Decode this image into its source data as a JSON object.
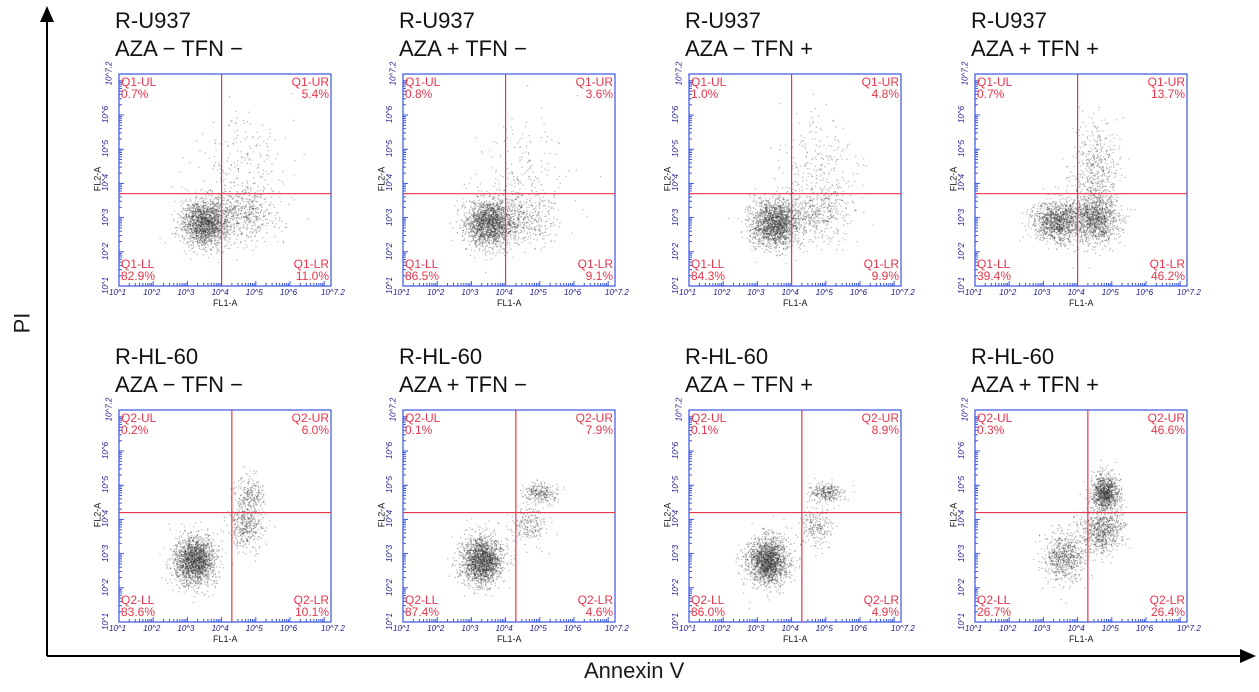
{
  "axes": {
    "ylabel": "PI",
    "xlabel": "Annexin V"
  },
  "colors": {
    "frame": "#3a55e0",
    "gate": "#e8364b",
    "dots": "#2a2a2a",
    "axis": "#000000"
  },
  "chart_data": [
    {
      "type": "scatter",
      "row": 1,
      "col": 1,
      "title": "R-U937",
      "subtitle": "AZA − TFN −",
      "xlabel": "FL1-A",
      "ylabel": "FL2-A",
      "xticks": [
        "10^1",
        "10^2",
        "10^3",
        "10^4",
        "10^5",
        "10^6",
        "10^7.2"
      ],
      "yticks": [
        "10^1",
        "10^2",
        "10^3",
        "10^4",
        "10^5",
        "10^6",
        "10^7.2"
      ],
      "xlim": [
        1,
        7.2
      ],
      "ylim": [
        1,
        7.2
      ],
      "scale": "log10",
      "gate": {
        "x": 4.0,
        "y": 3.7
      },
      "quadrants": {
        "UL": {
          "name": "Q1-UL",
          "value": "0.7%"
        },
        "UR": {
          "name": "Q1-UR",
          "value": "5.4%"
        },
        "LL": {
          "name": "Q1-LL",
          "value": "82.9%"
        },
        "LR": {
          "name": "Q1-LR",
          "value": "11.0%"
        }
      },
      "populations": [
        {
          "cx": 3.5,
          "cy": 2.85,
          "sx": 0.35,
          "sy": 0.35,
          "n": 1800
        },
        {
          "cx": 4.6,
          "cy": 3.1,
          "sx": 0.5,
          "sy": 0.4,
          "n": 500
        },
        {
          "cx": 4.6,
          "cy": 4.4,
          "sx": 0.6,
          "sy": 0.8,
          "n": 250
        }
      ]
    },
    {
      "type": "scatter",
      "row": 1,
      "col": 2,
      "title": "R-U937",
      "subtitle": "AZA + TFN −",
      "xlabel": "FL1-A",
      "ylabel": "FL2-A",
      "xticks": [
        "10^1",
        "10^2",
        "10^3",
        "10^4",
        "10^5",
        "10^6",
        "10^7.2"
      ],
      "yticks": [
        "10^1",
        "10^2",
        "10^3",
        "10^4",
        "10^5",
        "10^6",
        "10^7.2"
      ],
      "xlim": [
        1,
        7.2
      ],
      "ylim": [
        1,
        7.2
      ],
      "scale": "log10",
      "gate": {
        "x": 4.0,
        "y": 3.7
      },
      "quadrants": {
        "UL": {
          "name": "Q1-UL",
          "value": "0.8%"
        },
        "UR": {
          "name": "Q1-UR",
          "value": "3.6%"
        },
        "LL": {
          "name": "Q1-LL",
          "value": "86.5%"
        },
        "LR": {
          "name": "Q1-LR",
          "value": "9.1%"
        }
      },
      "populations": [
        {
          "cx": 3.5,
          "cy": 2.85,
          "sx": 0.35,
          "sy": 0.35,
          "n": 1800
        },
        {
          "cx": 4.5,
          "cy": 3.0,
          "sx": 0.5,
          "sy": 0.4,
          "n": 450
        },
        {
          "cx": 4.5,
          "cy": 4.3,
          "sx": 0.6,
          "sy": 0.8,
          "n": 180
        }
      ]
    },
    {
      "type": "scatter",
      "row": 1,
      "col": 3,
      "title": "R-U937",
      "subtitle": "AZA − TFN +",
      "xlabel": "FL1-A",
      "ylabel": "FL2-A",
      "xticks": [
        "10^1",
        "10^2",
        "10^3",
        "10^4",
        "10^5",
        "10^6",
        "10^7.2"
      ],
      "yticks": [
        "10^1",
        "10^2",
        "10^3",
        "10^4",
        "10^5",
        "10^6",
        "10^7.2"
      ],
      "xlim": [
        1,
        7.2
      ],
      "ylim": [
        1,
        7.2
      ],
      "scale": "log10",
      "gate": {
        "x": 4.0,
        "y": 3.7
      },
      "quadrants": {
        "UL": {
          "name": "Q1-UL",
          "value": "1.0%"
        },
        "UR": {
          "name": "Q1-UR",
          "value": "4.8%"
        },
        "LL": {
          "name": "Q1-LL",
          "value": "84.3%"
        },
        "LR": {
          "name": "Q1-LR",
          "value": "9.9%"
        }
      },
      "populations": [
        {
          "cx": 3.5,
          "cy": 2.85,
          "sx": 0.35,
          "sy": 0.35,
          "n": 1800
        },
        {
          "cx": 4.7,
          "cy": 3.1,
          "sx": 0.5,
          "sy": 0.4,
          "n": 480
        },
        {
          "cx": 4.7,
          "cy": 4.4,
          "sx": 0.6,
          "sy": 0.8,
          "n": 240
        }
      ]
    },
    {
      "type": "scatter",
      "row": 1,
      "col": 4,
      "title": "R-U937",
      "subtitle": "AZA + TFN +",
      "xlabel": "FL1-A",
      "ylabel": "FL2-A",
      "xticks": [
        "10^1",
        "10^2",
        "10^3",
        "10^4",
        "10^5",
        "10^6",
        "10^7.2"
      ],
      "yticks": [
        "10^1",
        "10^2",
        "10^3",
        "10^4",
        "10^5",
        "10^6",
        "10^7.2"
      ],
      "xlim": [
        1,
        7.2
      ],
      "ylim": [
        1,
        7.2
      ],
      "scale": "log10",
      "gate": {
        "x": 4.0,
        "y": 3.7
      },
      "quadrants": {
        "UL": {
          "name": "Q1-UL",
          "value": "0.7%"
        },
        "UR": {
          "name": "Q1-UR",
          "value": "13.7%"
        },
        "LL": {
          "name": "Q1-LL",
          "value": "39.4%"
        },
        "LR": {
          "name": "Q1-LR",
          "value": "46.2%"
        }
      },
      "populations": [
        {
          "cx": 3.4,
          "cy": 2.9,
          "sx": 0.35,
          "sy": 0.3,
          "n": 1200
        },
        {
          "cx": 4.5,
          "cy": 3.0,
          "sx": 0.35,
          "sy": 0.4,
          "n": 1300
        },
        {
          "cx": 4.5,
          "cy": 4.5,
          "sx": 0.35,
          "sy": 0.6,
          "n": 450
        }
      ]
    },
    {
      "type": "scatter",
      "row": 2,
      "col": 1,
      "title": "R-HL-60",
      "subtitle": "AZA − TFN −",
      "xlabel": "FL1-A",
      "ylabel": "FL2-A",
      "xticks": [
        "10^1",
        "10^2",
        "10^3",
        "10^4",
        "10^5",
        "10^6",
        "10^7.2"
      ],
      "yticks": [
        "10^1",
        "10^2",
        "10^3",
        "10^4",
        "10^5",
        "10^6",
        "10^7.2"
      ],
      "xlim": [
        1,
        7.2
      ],
      "ylim": [
        1,
        7.2
      ],
      "scale": "log10",
      "gate": {
        "x": 4.3,
        "y": 4.2
      },
      "quadrants": {
        "UL": {
          "name": "Q2-UL",
          "value": "0.2%"
        },
        "UR": {
          "name": "Q2-UR",
          "value": "6.0%"
        },
        "LL": {
          "name": "Q2-LL",
          "value": "83.6%"
        },
        "LR": {
          "name": "Q2-LR",
          "value": "10.1%"
        }
      },
      "populations": [
        {
          "cx": 3.2,
          "cy": 2.8,
          "sx": 0.3,
          "sy": 0.35,
          "n": 1900
        },
        {
          "cx": 4.7,
          "cy": 3.8,
          "sx": 0.25,
          "sy": 0.35,
          "n": 400
        },
        {
          "cx": 4.8,
          "cy": 4.7,
          "sx": 0.2,
          "sy": 0.3,
          "n": 250
        }
      ]
    },
    {
      "type": "scatter",
      "row": 2,
      "col": 2,
      "title": "R-HL-60",
      "subtitle": "AZA + TFN −",
      "xlabel": "FL1-A",
      "ylabel": "FL2-A",
      "xticks": [
        "10^1",
        "10^2",
        "10^3",
        "10^4",
        "10^5",
        "10^6",
        "10^7.2"
      ],
      "yticks": [
        "10^1",
        "10^2",
        "10^3",
        "10^4",
        "10^5",
        "10^6",
        "10^7.2"
      ],
      "xlim": [
        1,
        7.2
      ],
      "ylim": [
        1,
        7.2
      ],
      "scale": "log10",
      "gate": {
        "x": 4.3,
        "y": 4.2
      },
      "quadrants": {
        "UL": {
          "name": "Q2-UL",
          "value": "0.1%"
        },
        "UR": {
          "name": "Q2-UR",
          "value": "7.9%"
        },
        "LL": {
          "name": "Q2-LL",
          "value": "87.4%"
        },
        "LR": {
          "name": "Q2-LR",
          "value": "4.6%"
        }
      },
      "populations": [
        {
          "cx": 3.3,
          "cy": 2.8,
          "sx": 0.3,
          "sy": 0.35,
          "n": 1900
        },
        {
          "cx": 4.7,
          "cy": 3.8,
          "sx": 0.25,
          "sy": 0.3,
          "n": 220
        },
        {
          "cx": 5.0,
          "cy": 4.8,
          "sx": 0.25,
          "sy": 0.15,
          "n": 260
        }
      ]
    },
    {
      "type": "scatter",
      "row": 2,
      "col": 3,
      "title": "R-HL-60",
      "subtitle": "AZA − TFN +",
      "xlabel": "FL1-A",
      "ylabel": "FL2-A",
      "xticks": [
        "10^1",
        "10^2",
        "10^3",
        "10^4",
        "10^5",
        "10^6",
        "10^7.2"
      ],
      "yticks": [
        "10^1",
        "10^2",
        "10^3",
        "10^4",
        "10^5",
        "10^6",
        "10^7.2"
      ],
      "xlim": [
        1,
        7.2
      ],
      "ylim": [
        1,
        7.2
      ],
      "scale": "log10",
      "gate": {
        "x": 4.3,
        "y": 4.2
      },
      "quadrants": {
        "UL": {
          "name": "Q2-UL",
          "value": "0.1%"
        },
        "UR": {
          "name": "Q2-UR",
          "value": "8.9%"
        },
        "LL": {
          "name": "Q2-LL",
          "value": "86.0%"
        },
        "LR": {
          "name": "Q2-LR",
          "value": "4.9%"
        }
      },
      "populations": [
        {
          "cx": 3.3,
          "cy": 2.8,
          "sx": 0.3,
          "sy": 0.35,
          "n": 1900
        },
        {
          "cx": 4.7,
          "cy": 3.8,
          "sx": 0.25,
          "sy": 0.3,
          "n": 230
        },
        {
          "cx": 5.0,
          "cy": 4.8,
          "sx": 0.25,
          "sy": 0.15,
          "n": 290
        }
      ]
    },
    {
      "type": "scatter",
      "row": 2,
      "col": 4,
      "title": "R-HL-60",
      "subtitle": "AZA + TFN +",
      "xlabel": "FL1-A",
      "ylabel": "FL2-A",
      "xticks": [
        "10^1",
        "10^2",
        "10^3",
        "10^4",
        "10^5",
        "10^6",
        "10^7.2"
      ],
      "yticks": [
        "10^1",
        "10^2",
        "10^3",
        "10^4",
        "10^5",
        "10^6",
        "10^7.2"
      ],
      "xlim": [
        1,
        7.2
      ],
      "ylim": [
        1,
        7.2
      ],
      "scale": "log10",
      "gate": {
        "x": 4.3,
        "y": 4.2
      },
      "quadrants": {
        "UL": {
          "name": "Q2-UL",
          "value": "0.3%"
        },
        "UR": {
          "name": "Q2-UR",
          "value": "46.6%"
        },
        "LL": {
          "name": "Q2-LL",
          "value": "26.7%"
        },
        "LR": {
          "name": "Q2-LR",
          "value": "26.4%"
        }
      },
      "populations": [
        {
          "cx": 3.6,
          "cy": 2.9,
          "sx": 0.3,
          "sy": 0.35,
          "n": 700
        },
        {
          "cx": 4.7,
          "cy": 3.7,
          "sx": 0.3,
          "sy": 0.35,
          "n": 750
        },
        {
          "cx": 4.8,
          "cy": 4.8,
          "sx": 0.2,
          "sy": 0.25,
          "n": 1000
        }
      ]
    }
  ]
}
